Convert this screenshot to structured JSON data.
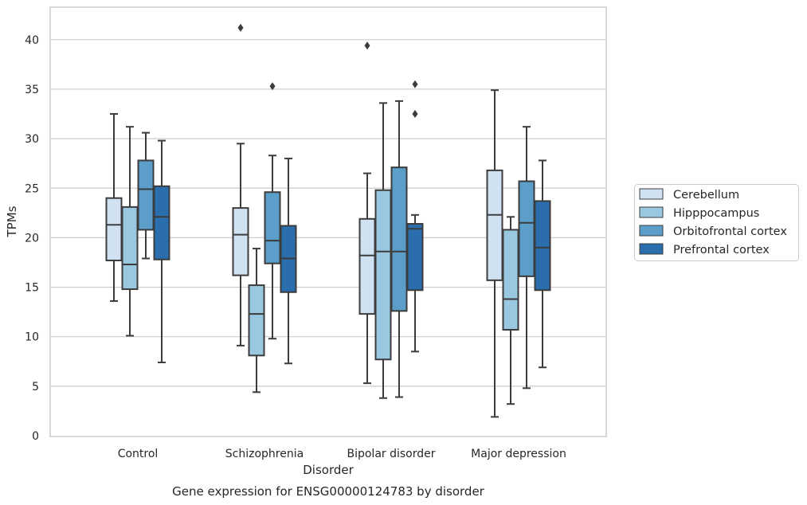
{
  "chart_data": {
    "type": "box",
    "title": "Gene expression for ENSG00000124783 by disorder",
    "xlabel": "Disorder",
    "ylabel": "TPMs",
    "ylim": [
      0,
      43.3
    ],
    "yticks": [
      0,
      5,
      10,
      15,
      20,
      25,
      30,
      35,
      40
    ],
    "grid": true,
    "legend_position": "right",
    "categories": [
      "Control",
      "Schizophrenia",
      "Bipolar disorder",
      "Major depression"
    ],
    "series": [
      {
        "name": "Cerebellum",
        "color": "#d0e2f2",
        "boxes": [
          {
            "whislo": 13.6,
            "q1": 17.7,
            "med": 21.3,
            "q3": 24.0,
            "whishi": 32.5,
            "fliers": []
          },
          {
            "whislo": 9.1,
            "q1": 16.2,
            "med": 20.3,
            "q3": 23.0,
            "whishi": 29.5,
            "fliers": [
              41.2
            ]
          },
          {
            "whislo": 5.3,
            "q1": 12.3,
            "med": 18.2,
            "q3": 21.9,
            "whishi": 26.5,
            "fliers": [
              39.4
            ]
          },
          {
            "whislo": 1.9,
            "q1": 15.7,
            "med": 22.3,
            "q3": 26.8,
            "whishi": 34.9,
            "fliers": []
          }
        ]
      },
      {
        "name": "Hipppocampus",
        "color": "#9ac8e0",
        "boxes": [
          {
            "whislo": 10.1,
            "q1": 14.8,
            "med": 17.3,
            "q3": 23.1,
            "whishi": 31.2,
            "fliers": []
          },
          {
            "whislo": 4.4,
            "q1": 8.1,
            "med": 12.3,
            "q3": 15.2,
            "whishi": 18.9,
            "fliers": []
          },
          {
            "whislo": 3.8,
            "q1": 7.7,
            "med": 18.6,
            "q3": 24.8,
            "whishi": 33.6,
            "fliers": []
          },
          {
            "whislo": 3.2,
            "q1": 10.7,
            "med": 13.8,
            "q3": 20.8,
            "whishi": 22.1,
            "fliers": []
          }
        ]
      },
      {
        "name": "Orbitofrontal cortex",
        "color": "#5a9ec9",
        "boxes": [
          {
            "whislo": 17.9,
            "q1": 20.8,
            "med": 24.9,
            "q3": 27.8,
            "whishi": 30.6,
            "fliers": []
          },
          {
            "whislo": 9.8,
            "q1": 17.4,
            "med": 19.7,
            "q3": 24.6,
            "whishi": 28.3,
            "fliers": [
              35.3
            ]
          },
          {
            "whislo": 3.9,
            "q1": 12.6,
            "med": 18.6,
            "q3": 27.1,
            "whishi": 33.8,
            "fliers": []
          },
          {
            "whislo": 4.8,
            "q1": 16.1,
            "med": 21.5,
            "q3": 25.7,
            "whishi": 31.2,
            "fliers": []
          }
        ]
      },
      {
        "name": "Prefrontal cortex",
        "color": "#2a6eae",
        "boxes": [
          {
            "whislo": 7.4,
            "q1": 17.8,
            "med": 22.1,
            "q3": 25.2,
            "whishi": 29.8,
            "fliers": []
          },
          {
            "whislo": 7.3,
            "q1": 14.5,
            "med": 17.9,
            "q3": 21.2,
            "whishi": 28.0,
            "fliers": []
          },
          {
            "whislo": 8.5,
            "q1": 14.7,
            "med": 20.9,
            "q3": 21.4,
            "whishi": 22.3,
            "fliers": [
              35.5,
              32.5
            ]
          },
          {
            "whislo": 6.9,
            "q1": 14.7,
            "med": 19.0,
            "q3": 23.7,
            "whishi": 27.8,
            "fliers": []
          }
        ]
      }
    ]
  }
}
